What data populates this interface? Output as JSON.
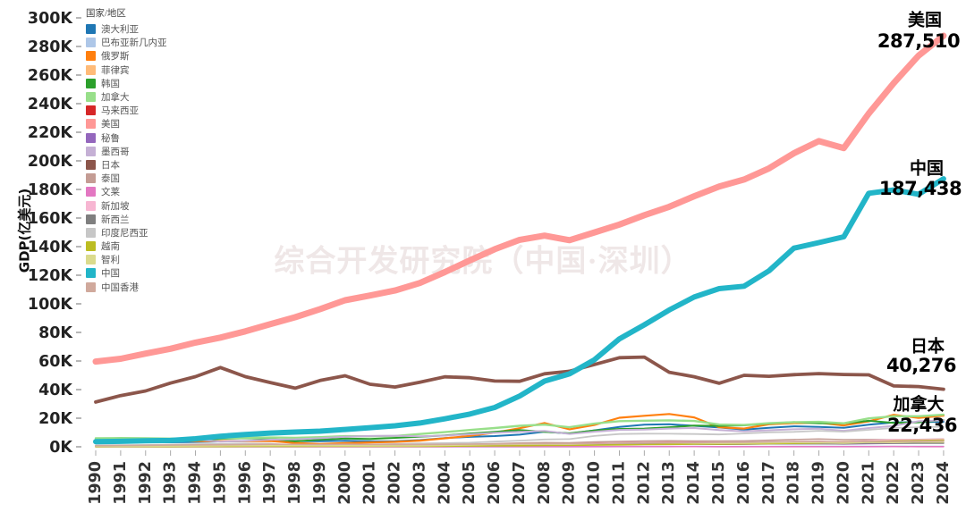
{
  "chart_data": {
    "type": "line",
    "title": "",
    "ylabel": "GDP(亿美元)",
    "xlabel": "",
    "ylim": [
      0,
      300000
    ],
    "ytick_step": 20000,
    "ytick_suffix": "K",
    "grid": false,
    "legend_position": "upper-left",
    "legend_title": "国家/地区",
    "watermark": "综合开发研究院（中国·深圳）",
    "x": [
      "1990",
      "1991",
      "1992",
      "1993",
      "1994",
      "1995",
      "1996",
      "1997",
      "1998",
      "1999",
      "2000",
      "2001",
      "2002",
      "2003",
      "2004",
      "2005",
      "2006",
      "2007",
      "2008",
      "2009",
      "2010",
      "2011",
      "2012",
      "2013",
      "2014",
      "2015",
      "2016",
      "2017",
      "2018",
      "2019",
      "2020",
      "2021",
      "2022",
      "2023",
      "2024"
    ],
    "series": [
      {
        "name": "澳大利亚",
        "color": "#1f77b4",
        "width": 2,
        "values": [
          3110,
          3260,
          3250,
          3120,
          3380,
          3780,
          4010,
          4350,
          3990,
          3890,
          4160,
          3790,
          3950,
          4670,
          6130,
          6950,
          7480,
          8530,
          10550,
          9280,
          11480,
          13960,
          15460,
          15760,
          14670,
          13510,
          12060,
          13270,
          14330,
          13920,
          13270,
          15520,
          17020,
          17240,
          17500
        ]
      },
      {
        "name": "巴布亚新几内亚",
        "color": "#aec7e8",
        "width": 1.6,
        "values": [
          32,
          37,
          43,
          49,
          55,
          47,
          51,
          48,
          37,
          34,
          35,
          30,
          29,
          35,
          39,
          48,
          55,
          63,
          79,
          80,
          95,
          128,
          155,
          153,
          165,
          152,
          163,
          201,
          232,
          248,
          238,
          263,
          315,
          310,
          320
        ]
      },
      {
        "name": "俄罗斯",
        "color": "#ff7f0e",
        "width": 2.2,
        "values": [
          5160,
          5180,
          4600,
          4350,
          3950,
          3960,
          3920,
          4050,
          2710,
          1960,
          2600,
          3070,
          3450,
          4300,
          5910,
          7640,
          9900,
          12990,
          16610,
          12230,
          15250,
          20320,
          21700,
          22920,
          20590,
          13630,
          12770,
          15740,
          16570,
          16930,
          14930,
          17790,
          22400,
          20210,
          21800
        ]
      },
      {
        "name": "菲律宾",
        "color": "#ffbb78",
        "width": 1.6,
        "values": [
          442,
          455,
          530,
          543,
          644,
          740,
          828,
          826,
          724,
          830,
          810,
          766,
          814,
          839,
          918,
          1030,
          1220,
          1490,
          1740,
          1680,
          2000,
          2240,
          2500,
          2720,
          2850,
          2920,
          3040,
          3140,
          3300,
          3610,
          3620,
          3940,
          4040,
          4370,
          4700
        ]
      },
      {
        "name": "韩国",
        "color": "#2ca02c",
        "width": 2,
        "values": [
          2790,
          3250,
          3500,
          3860,
          4560,
          5560,
          6030,
          5690,
          3830,
          4970,
          5760,
          5470,
          6270,
          7020,
          7930,
          9340,
          10530,
          11720,
          10470,
          9440,
          11440,
          12530,
          12780,
          13700,
          14840,
          14650,
          15000,
          16230,
          17250,
          16510,
          16440,
          18180,
          16740,
          17130,
          18700
        ]
      },
      {
        "name": "加拿大",
        "color": "#98df8a",
        "width": 2.4,
        "values": [
          5960,
          6100,
          5920,
          5770,
          5780,
          6040,
          6280,
          6530,
          6310,
          6780,
          7450,
          7360,
          7580,
          8930,
          10260,
          11730,
          13150,
          14690,
          15490,
          13710,
          16170,
          17930,
          18280,
          18470,
          18060,
          15570,
          15280,
          16490,
          17210,
          17420,
          16450,
          19880,
          21380,
          21400,
          22436
        ]
      },
      {
        "name": "马来西亚",
        "color": "#d62728",
        "width": 1.6,
        "values": [
          441,
          492,
          590,
          665,
          746,
          889,
          1010,
          1000,
          723,
          792,
          940,
          928,
          1010,
          1100,
          1250,
          1430,
          1620,
          1940,
          2310,
          2020,
          2550,
          2980,
          3140,
          3230,
          3380,
          3010,
          3010,
          3190,
          3590,
          3650,
          3370,
          3730,
          4070,
          3990,
          4400
        ]
      },
      {
        "name": "美国",
        "color": "#ff9896",
        "width": 7,
        "values": [
          59630,
          61580,
          65200,
          68580,
          72870,
          76390,
          80730,
          85770,
          90620,
          96310,
          102500,
          105820,
          109290,
          114560,
          122170,
          130390,
          138160,
          144780,
          147700,
          144490,
          149920,
          155430,
          161970,
          167850,
          175220,
          182060,
          186950,
          194770,
          205330,
          213810,
          208940,
          233150,
          254400,
          273610,
          287510
        ]
      },
      {
        "name": "秘鲁",
        "color": "#9467bd",
        "width": 1.6,
        "values": [
          265,
          343,
          358,
          349,
          446,
          535,
          557,
          570,
          542,
          495,
          516,
          521,
          548,
          587,
          667,
          766,
          884,
          1020,
          1210,
          1210,
          1470,
          1690,
          1930,
          2010,
          2010,
          1890,
          1920,
          2110,
          2220,
          2280,
          2010,
          2230,
          2440,
          2670,
          2830
        ]
      },
      {
        "name": "墨西哥",
        "color": "#c5b0d5",
        "width": 2,
        "values": [
          2610,
          3130,
          3630,
          5030,
          5270,
          3600,
          4110,
          5000,
          5270,
          6000,
          7080,
          7560,
          7720,
          7290,
          7820,
          8770,
          9750,
          10530,
          11100,
          9000,
          10580,
          11810,
          12010,
          12740,
          13150,
          11710,
          10780,
          11580,
          12220,
          12690,
          11210,
          13130,
          14650,
          17890,
          18500
        ]
      },
      {
        "name": "日本",
        "color": "#8c564b",
        "width": 3.8,
        "values": [
          31320,
          35840,
          39080,
          44540,
          49070,
          55460,
          49060,
          44920,
          40980,
          46360,
          49680,
          43740,
          41820,
          45190,
          48930,
          48340,
          46010,
          45790,
          51060,
          52890,
          57590,
          62330,
          62720,
          52120,
          48970,
          44450,
          50030,
          49310,
          50410,
          51180,
          50560,
          50340,
          42560,
          42130,
          40276
        ]
      },
      {
        "name": "泰国",
        "color": "#c49c94",
        "width": 1.6,
        "values": [
          853,
          983,
          1110,
          1250,
          1440,
          1680,
          1830,
          1500,
          1120,
          1220,
          1260,
          1200,
          1340,
          1520,
          1720,
          1890,
          2210,
          2630,
          2910,
          2810,
          3410,
          3710,
          3980,
          4200,
          4070,
          4010,
          4130,
          4560,
          5070,
          5440,
          5000,
          5060,
          4950,
          5150,
          5450
        ]
      },
      {
        "name": "文莱",
        "color": "#e377c2",
        "width": 1.6,
        "values": [
          35,
          39,
          43,
          41,
          41,
          48,
          51,
          52,
          41,
          44,
          60,
          56,
          57,
          64,
          79,
          95,
          114,
          122,
          144,
          107,
          138,
          185,
          190,
          181,
          171,
          129,
          114,
          121,
          136,
          134,
          120,
          140,
          167,
          151,
          155
        ]
      },
      {
        "name": "新加坡",
        "color": "#f7b6d2",
        "width": 1.6,
        "values": [
          361,
          429,
          497,
          580,
          709,
          842,
          925,
          1000,
          855,
          862,
          960,
          898,
          920,
          974,
          1150,
          1270,
          1480,
          1800,
          1930,
          1940,
          2400,
          2790,
          2950,
          3080,
          3150,
          3080,
          3190,
          3430,
          3770,
          3760,
          3450,
          4340,
          4980,
          5010,
          5300
        ]
      },
      {
        "name": "新西兰",
        "color": "#7f7f7f",
        "width": 1.6,
        "values": [
          450,
          427,
          415,
          460,
          545,
          630,
          684,
          669,
          561,
          587,
          520,
          536,
          665,
          881,
          1020,
          1140,
          1120,
          1360,
          1320,
          1210,
          1460,
          1680,
          1760,
          1900,
          2000,
          1770,
          1870,
          2050,
          2110,
          2130,
          2120,
          2560,
          2470,
          2530,
          2530
        ]
      },
      {
        "name": "印度尼西亚",
        "color": "#c7c7c7",
        "width": 1.8,
        "values": [
          1060,
          1160,
          1280,
          1580,
          1770,
          2020,
          2270,
          2160,
          954,
          1400,
          1650,
          1600,
          1960,
          2350,
          2570,
          2860,
          3650,
          4320,
          5100,
          5390,
          7550,
          8930,
          9180,
          9120,
          8910,
          8610,
          9320,
          10150,
          10420,
          11190,
          10590,
          11860,
          13190,
          13710,
          14000
        ]
      },
      {
        "name": "越南",
        "color": "#bcbd22",
        "width": 1.6,
        "values": [
          65,
          97,
          99,
          131,
          163,
          207,
          247,
          269,
          272,
          287,
          311,
          330,
          351,
          398,
          456,
          576,
          664,
          774,
          991,
          1060,
          1160,
          1360,
          1560,
          1710,
          1860,
          1930,
          2050,
          2240,
          2450,
          2620,
          3460,
          3660,
          4090,
          4300,
          4700
        ]
      },
      {
        "name": "智利",
        "color": "#dbdb8d",
        "width": 1.6,
        "values": [
          312,
          360,
          440,
          479,
          554,
          713,
          756,
          828,
          795,
          730,
          778,
          709,
          700,
          778,
          998,
          1230,
          1550,
          1730,
          1800,
          1720,
          2180,
          2520,
          2670,
          2780,
          2600,
          2440,
          2500,
          2770,
          2980,
          2790,
          2540,
          3170,
          3010,
          3360,
          3300
        ]
      },
      {
        "name": "中国",
        "color": "#22b5c8",
        "width": 6,
        "values": [
          3609,
          3834,
          4269,
          4447,
          5643,
          7345,
          8638,
          9616,
          10292,
          10940,
          12113,
          13394,
          14705,
          16602,
          19553,
          22860,
          27520,
          35500,
          45940,
          51020,
          60870,
          75510,
          85320,
          95700,
          104760,
          110620,
          112330,
          123100,
          138950,
          142800,
          146870,
          177340,
          179630,
          176620,
          187438
        ]
      },
      {
        "name": "中国香港",
        "color": "#d0a99c",
        "width": 1.6,
        "values": [
          769,
          889,
          1040,
          1200,
          1350,
          1450,
          1600,
          1770,
          1670,
          1630,
          1720,
          1690,
          1660,
          1610,
          1690,
          1810,
          1940,
          2120,
          2190,
          2140,
          2290,
          2490,
          2630,
          2770,
          2910,
          3090,
          3210,
          3410,
          3620,
          3630,
          3450,
          3690,
          3600,
          3820,
          4070
        ]
      }
    ],
    "annotations": [
      {
        "series": "美国",
        "value": "287,510"
      },
      {
        "series": "中国",
        "value": "187,438"
      },
      {
        "series": "日本",
        "value": "40,276"
      },
      {
        "series": "加拿大",
        "value": "22,436"
      }
    ]
  }
}
